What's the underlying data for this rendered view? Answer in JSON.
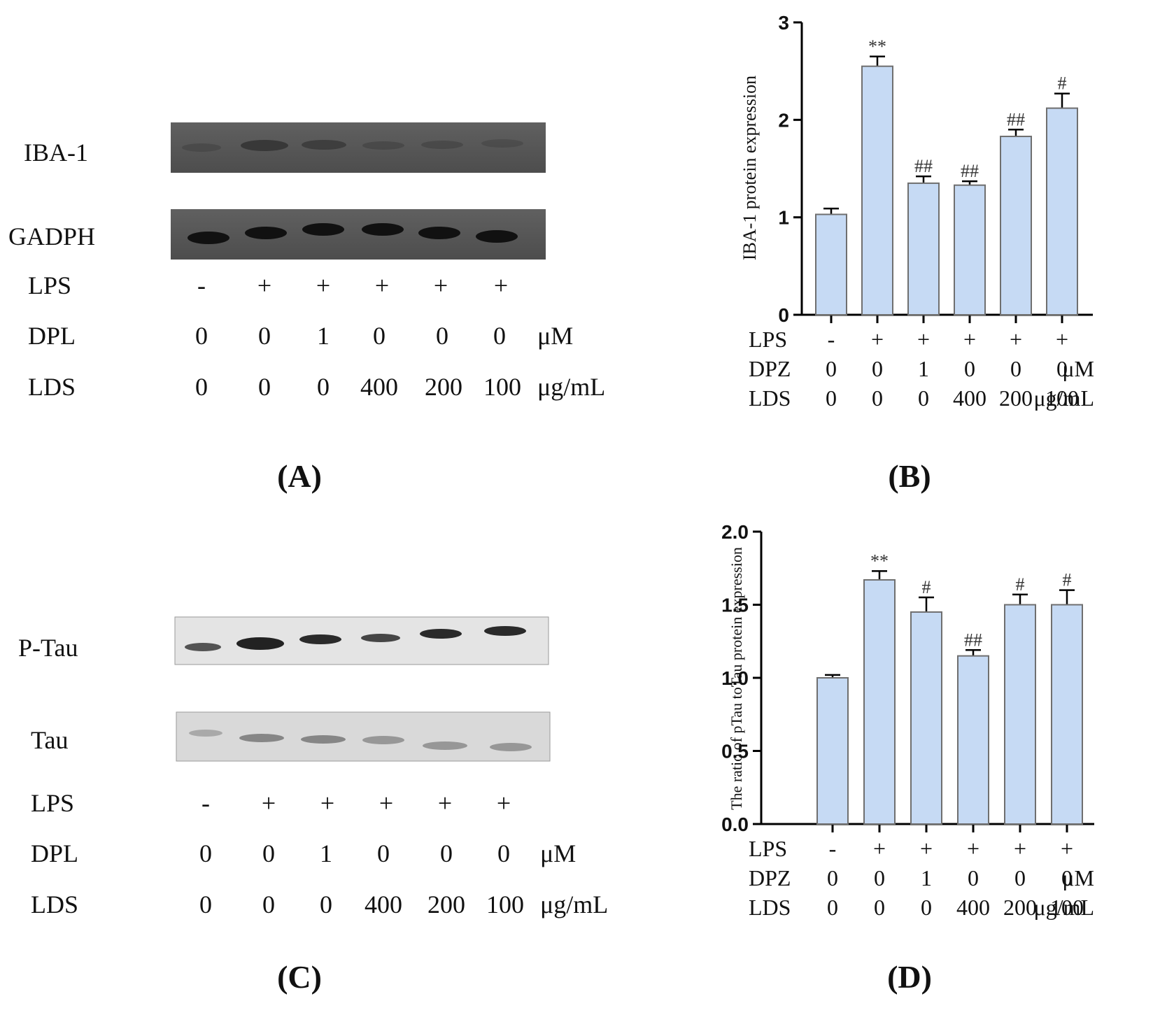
{
  "colors": {
    "bar_fill": "#c6daf4",
    "bar_stroke": "#6f6f6f",
    "axis": "#000000",
    "blot_dark": "#555555",
    "blot_light": "#e1e1e1"
  },
  "panel_a": {
    "caption": "(A)",
    "band_labels": [
      "IBA-1",
      "GADPH"
    ],
    "row_labels": [
      "LPS",
      "DPL",
      "LDS"
    ],
    "lps": [
      "-",
      "+",
      "+",
      "+",
      "+",
      "+"
    ],
    "dpl": [
      "0",
      "0",
      "1",
      "0",
      "0",
      "0"
    ],
    "lds": [
      "0",
      "0",
      "0",
      "400",
      "200",
      "100"
    ],
    "unit_dpl": "μM",
    "unit_lds": "μg/mL"
  },
  "panel_c": {
    "caption": "(C)",
    "band_labels": [
      "P-Tau",
      "Tau"
    ],
    "row_labels": [
      "LPS",
      "DPL",
      "LDS"
    ],
    "lps": [
      "-",
      "+",
      "+",
      "+",
      "+",
      "+"
    ],
    "dpl": [
      "0",
      "0",
      "1",
      "0",
      "0",
      "0"
    ],
    "lds": [
      "0",
      "0",
      "0",
      "400",
      "200",
      "100"
    ],
    "unit_dpl": "μM",
    "unit_lds": "μg/mL"
  },
  "chart_data": [
    {
      "panel": "(B)",
      "type": "bar",
      "title": "",
      "ylabel": "IBA-1  protein expression",
      "ylim": [
        0,
        3
      ],
      "yticks": [
        "0",
        "1",
        "2",
        "3"
      ],
      "categories": [
        "-/0/0",
        "+/0/0",
        "+/1/0",
        "+/0/400",
        "+/0/200",
        "+/0/100"
      ],
      "values": [
        1.03,
        2.55,
        1.35,
        1.33,
        1.83,
        2.12
      ],
      "errors": [
        0.06,
        0.1,
        0.07,
        0.04,
        0.07,
        0.15
      ],
      "annotations": [
        "",
        "**",
        "##",
        "##",
        "##",
        "#"
      ],
      "row_labels": [
        "LPS",
        "DPZ",
        "LDS"
      ],
      "lps": [
        "-",
        "+",
        "+",
        "+",
        "+",
        "+"
      ],
      "dpz": [
        "0",
        "0",
        "1",
        "0",
        "0",
        "0"
      ],
      "lds": [
        "0",
        "0",
        "0",
        "400",
        "200",
        "100"
      ],
      "unit_dpz": "μM",
      "unit_lds": "μg/mL"
    },
    {
      "panel": "(D)",
      "type": "bar",
      "title": "",
      "ylabel": "The ratio of pTau toTau protein expression",
      "ylim": [
        0,
        2.0
      ],
      "yticks": [
        "0.0",
        "0.5",
        "1.0",
        "1.5",
        "2.0"
      ],
      "categories": [
        "-/0/0",
        "+/0/0",
        "+/1/0",
        "+/0/400",
        "+/0/200",
        "+/0/100"
      ],
      "values": [
        1.0,
        1.67,
        1.45,
        1.15,
        1.5,
        1.5
      ],
      "errors": [
        0.02,
        0.06,
        0.1,
        0.04,
        0.07,
        0.1
      ],
      "annotations": [
        "",
        "**",
        "#",
        "##",
        "#",
        "#"
      ],
      "row_labels": [
        "LPS",
        "DPZ",
        "LDS"
      ],
      "lps": [
        "-",
        "+",
        "+",
        "+",
        "+",
        "+"
      ],
      "dpz": [
        "0",
        "0",
        "1",
        "0",
        "0",
        "0"
      ],
      "lds": [
        "0",
        "0",
        "0",
        "400",
        "200",
        "100"
      ],
      "unit_dpz": "μM",
      "unit_lds": "μg/mL"
    }
  ]
}
